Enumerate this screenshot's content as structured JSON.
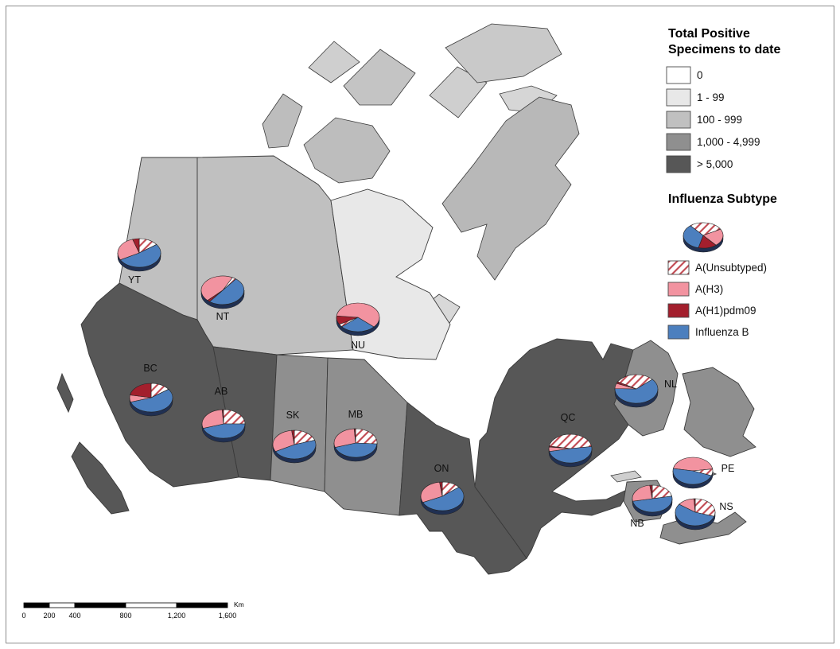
{
  "legend": {
    "title_line1": "Total Positive",
    "title_line2": "Specimens to date",
    "classes": [
      {
        "label": "0",
        "color": "#FFFFFF"
      },
      {
        "label": "1 - 99",
        "color": "#E8E8E8"
      },
      {
        "label": "100 - 999",
        "color": "#C0C0C0"
      },
      {
        "label": "1,000 - 4,999",
        "color": "#8F8F8F"
      },
      {
        "label": "> 5,000",
        "color": "#575757"
      }
    ],
    "subtype_title": "Influenza Subtype",
    "subtypes": [
      {
        "id": "A_unsubtyped",
        "label": "A(Unsubtyped)",
        "fill": "hatch"
      },
      {
        "id": "A_H3",
        "label": "A(H3)",
        "fill": "#F293A0"
      },
      {
        "id": "A_H1pdm09",
        "label": "A(H1)pdm09",
        "fill": "#A31F2D"
      },
      {
        "id": "B",
        "label": "Influenza B",
        "fill": "#4C7FBE"
      }
    ],
    "sample_pie": {
      "start": -40,
      "slices": [
        {
          "subtype": "A_unsubtyped",
          "value": 28
        },
        {
          "subtype": "A_H3",
          "value": 22
        },
        {
          "subtype": "A_H1pdm09",
          "value": 15
        },
        {
          "subtype": "B",
          "value": 35
        }
      ]
    }
  },
  "colors": {
    "hatch_line": "#C0464F",
    "pie_depth": "#203052",
    "ocean": "#FFFFFF"
  },
  "scale_bar": {
    "tick_labels": [
      "0",
      "200",
      "400",
      "800",
      "1,200",
      "1,600"
    ],
    "unit": "Km"
  },
  "provinces": {
    "yt": {
      "label": "YT",
      "class_index": 2,
      "pie": {
        "start": 0,
        "slices": [
          {
            "subtype": "A_unsubtyped",
            "value": 15
          },
          {
            "subtype": "B",
            "value": 52
          },
          {
            "subtype": "A_H3",
            "value": 28
          },
          {
            "subtype": "A_H1pdm09",
            "value": 5
          }
        ]
      }
    },
    "nt": {
      "label": "NT",
      "class_index": 2,
      "pie": {
        "start": 225,
        "slices": [
          {
            "subtype": "A_H3",
            "value": 45
          },
          {
            "subtype": "A_unsubtyped",
            "value": 3
          },
          {
            "subtype": "B",
            "value": 50
          },
          {
            "subtype": "A_H1pdm09",
            "value": 2
          }
        ]
      }
    },
    "nu": {
      "label": "NU",
      "class_index": 1,
      "pie": {
        "start": 240,
        "slices": [
          {
            "subtype": "A_H1pdm09",
            "value": 10
          },
          {
            "subtype": "A_H3",
            "value": 60
          },
          {
            "subtype": "B",
            "value": 27
          },
          {
            "subtype": "A_unsubtyped",
            "value": 3
          }
        ]
      }
    },
    "bc": {
      "label": "BC",
      "class_index": 4,
      "pie": {
        "start": 0,
        "slices": [
          {
            "subtype": "A_unsubtyped",
            "value": 15
          },
          {
            "subtype": "B",
            "value": 55
          },
          {
            "subtype": "A_H3",
            "value": 8
          },
          {
            "subtype": "A_H1pdm09",
            "value": 22
          }
        ]
      }
    },
    "ab": {
      "label": "AB",
      "class_index": 4,
      "pie": {
        "start": 0,
        "slices": [
          {
            "subtype": "A_unsubtyped",
            "value": 25
          },
          {
            "subtype": "B",
            "value": 45
          },
          {
            "subtype": "A_H3",
            "value": 29
          },
          {
            "subtype": "A_H1pdm09",
            "value": 1
          }
        ]
      }
    },
    "sk": {
      "label": "SK",
      "class_index": 3,
      "pie": {
        "start": 0,
        "slices": [
          {
            "subtype": "A_unsubtyped",
            "value": 20
          },
          {
            "subtype": "B",
            "value": 47
          },
          {
            "subtype": "A_H3",
            "value": 31
          },
          {
            "subtype": "A_H1pdm09",
            "value": 2
          }
        ]
      }
    },
    "mb": {
      "label": "MB",
      "class_index": 3,
      "pie": {
        "start": 0,
        "slices": [
          {
            "subtype": "A_unsubtyped",
            "value": 26
          },
          {
            "subtype": "B",
            "value": 44
          },
          {
            "subtype": "A_H3",
            "value": 29
          },
          {
            "subtype": "A_H1pdm09",
            "value": 1
          }
        ]
      }
    },
    "on": {
      "label": "ON",
      "class_index": 4,
      "pie": {
        "start": 0,
        "slices": [
          {
            "subtype": "A_unsubtyped",
            "value": 14
          },
          {
            "subtype": "B",
            "value": 54
          },
          {
            "subtype": "A_H3",
            "value": 30
          },
          {
            "subtype": "A_H1pdm09",
            "value": 2
          }
        ]
      }
    },
    "qc": {
      "label": "QC",
      "class_index": 4,
      "pie": {
        "start": 280,
        "slices": [
          {
            "subtype": "A_unsubtyped",
            "value": 45
          },
          {
            "subtype": "B",
            "value": 49
          },
          {
            "subtype": "A_H3",
            "value": 5
          },
          {
            "subtype": "A_H1pdm09",
            "value": 1
          }
        ]
      }
    },
    "nl": {
      "label": "NL",
      "class_index": 3,
      "pie": {
        "start": 300,
        "slices": [
          {
            "subtype": "A_unsubtyped",
            "value": 30
          },
          {
            "subtype": "B",
            "value": 62
          },
          {
            "subtype": "A_H3",
            "value": 6
          },
          {
            "subtype": "A_H1pdm09",
            "value": 2
          }
        ]
      }
    },
    "pe": {
      "label": "PE",
      "class_index": 3,
      "pie": {
        "start": 280,
        "slices": [
          {
            "subtype": "A_H3",
            "value": 45
          },
          {
            "subtype": "A_unsubtyped",
            "value": 8
          },
          {
            "subtype": "B",
            "value": 47
          }
        ]
      }
    },
    "nb": {
      "label": "NB",
      "class_index": 3,
      "pie": {
        "start": 0,
        "slices": [
          {
            "subtype": "A_unsubtyped",
            "value": 22
          },
          {
            "subtype": "B",
            "value": 50
          },
          {
            "subtype": "A_H3",
            "value": 26
          },
          {
            "subtype": "A_H1pdm09",
            "value": 2
          }
        ]
      }
    },
    "ns": {
      "label": "NS",
      "class_index": 3,
      "pie": {
        "start": 0,
        "slices": [
          {
            "subtype": "A_unsubtyped",
            "value": 30
          },
          {
            "subtype": "B",
            "value": 55
          },
          {
            "subtype": "A_H3",
            "value": 14
          },
          {
            "subtype": "A_H1pdm09",
            "value": 1
          }
        ]
      }
    }
  }
}
